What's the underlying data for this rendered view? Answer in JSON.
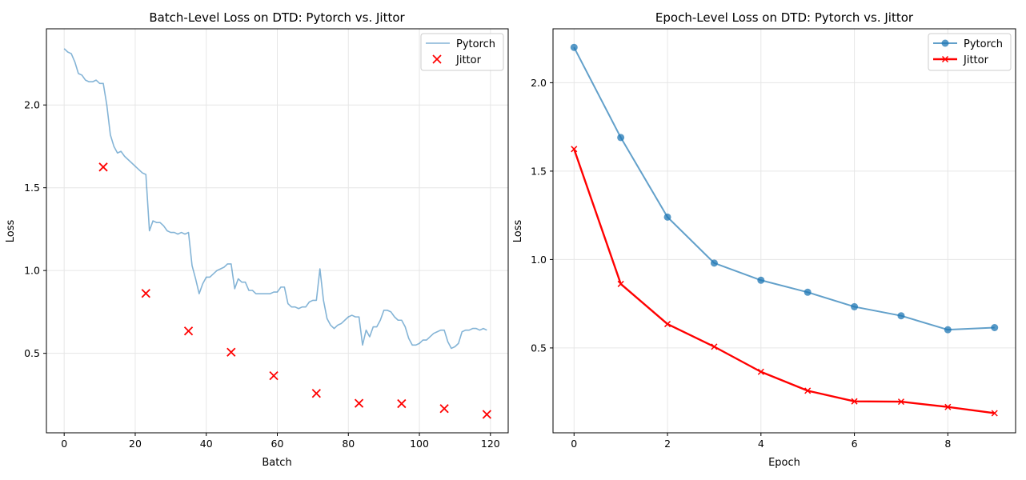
{
  "colors": {
    "pytorch_line": "#1f77b4",
    "jittor": "#ff0000",
    "grid": "#e6e6e6",
    "axis": "#000000"
  },
  "chart_data": [
    {
      "type": "line",
      "title": "Batch-Level Loss on DTD: Pytorch vs. Jittor",
      "xlabel": "Batch",
      "ylabel": "Loss",
      "xlim": [
        -5,
        125
      ],
      "ylim": [
        0.02,
        2.46
      ],
      "xticks": [
        0,
        20,
        40,
        60,
        80,
        100,
        120
      ],
      "yticks": [
        0.5,
        1.0,
        1.5,
        2.0
      ],
      "grid": true,
      "legend": "top-right",
      "series": [
        {
          "name": "Pytorch",
          "style": "line",
          "x": [
            0,
            1,
            2,
            3,
            4,
            5,
            6,
            7,
            8,
            9,
            10,
            11,
            12,
            13,
            14,
            15,
            16,
            17,
            18,
            19,
            20,
            21,
            22,
            23,
            24,
            25,
            26,
            27,
            28,
            29,
            30,
            31,
            32,
            33,
            34,
            35,
            36,
            37,
            38,
            39,
            40,
            41,
            42,
            43,
            44,
            45,
            46,
            47,
            48,
            49,
            50,
            51,
            52,
            53,
            54,
            55,
            56,
            57,
            58,
            59,
            60,
            61,
            62,
            63,
            64,
            65,
            66,
            67,
            68,
            69,
            70,
            71,
            72,
            73,
            74,
            75,
            76,
            77,
            78,
            79,
            80,
            81,
            82,
            83,
            84,
            85,
            86,
            87,
            88,
            89,
            90,
            91,
            92,
            93,
            94,
            95,
            96,
            97,
            98,
            99,
            100,
            101,
            102,
            103,
            104,
            105,
            106,
            107,
            108,
            109,
            110,
            111,
            112,
            113,
            114,
            115,
            116,
            117,
            118,
            119
          ],
          "y": [
            2.34,
            2.32,
            2.31,
            2.26,
            2.19,
            2.18,
            2.15,
            2.14,
            2.14,
            2.15,
            2.13,
            2.13,
            2.0,
            1.82,
            1.75,
            1.71,
            1.72,
            1.69,
            1.67,
            1.65,
            1.63,
            1.61,
            1.59,
            1.58,
            1.24,
            1.3,
            1.29,
            1.29,
            1.27,
            1.24,
            1.23,
            1.23,
            1.22,
            1.23,
            1.22,
            1.23,
            1.03,
            0.95,
            0.86,
            0.92,
            0.96,
            0.96,
            0.98,
            1.0,
            1.01,
            1.02,
            1.04,
            1.04,
            0.89,
            0.95,
            0.93,
            0.93,
            0.88,
            0.88,
            0.86,
            0.86,
            0.86,
            0.86,
            0.86,
            0.87,
            0.87,
            0.9,
            0.9,
            0.8,
            0.78,
            0.78,
            0.77,
            0.78,
            0.78,
            0.81,
            0.82,
            0.82,
            1.01,
            0.82,
            0.71,
            0.67,
            0.65,
            0.67,
            0.68,
            0.7,
            0.72,
            0.73,
            0.72,
            0.72,
            0.55,
            0.64,
            0.6,
            0.66,
            0.66,
            0.7,
            0.76,
            0.76,
            0.75,
            0.72,
            0.7,
            0.7,
            0.66,
            0.59,
            0.55,
            0.55,
            0.56,
            0.58,
            0.58,
            0.6,
            0.62,
            0.63,
            0.64,
            0.64,
            0.57,
            0.53,
            0.54,
            0.56,
            0.63,
            0.64,
            0.64,
            0.65,
            0.65,
            0.64,
            0.65,
            0.64
          ]
        },
        {
          "name": "Jittor",
          "style": "scatter",
          "x": [
            11,
            23,
            35,
            47,
            59,
            71,
            83,
            95,
            107,
            119
          ],
          "y": [
            1.625,
            0.862,
            0.635,
            0.507,
            0.365,
            0.258,
            0.198,
            0.196,
            0.166,
            0.131
          ]
        }
      ]
    },
    {
      "type": "line",
      "title": "Epoch-Level Loss on DTD: Pytorch vs. Jittor",
      "xlabel": "Epoch",
      "ylabel": "Loss",
      "xlim": [
        -0.45,
        9.45
      ],
      "ylim": [
        0.02,
        2.305
      ],
      "xticks": [
        0,
        2,
        4,
        6,
        8
      ],
      "yticks": [
        0.5,
        1.0,
        1.5,
        2.0
      ],
      "grid": true,
      "legend": "top-right",
      "series": [
        {
          "name": "Pytorch",
          "style": "line-circle",
          "x": [
            0,
            1,
            2,
            3,
            4,
            5,
            6,
            7,
            8,
            9
          ],
          "y": [
            2.2,
            1.69,
            1.24,
            0.98,
            0.883,
            0.815,
            0.733,
            0.682,
            0.603,
            0.615
          ]
        },
        {
          "name": "Jittor",
          "style": "line-x",
          "x": [
            0,
            1,
            2,
            3,
            4,
            5,
            6,
            7,
            8,
            9
          ],
          "y": [
            1.625,
            0.862,
            0.635,
            0.507,
            0.365,
            0.258,
            0.198,
            0.196,
            0.166,
            0.131
          ]
        }
      ]
    }
  ]
}
